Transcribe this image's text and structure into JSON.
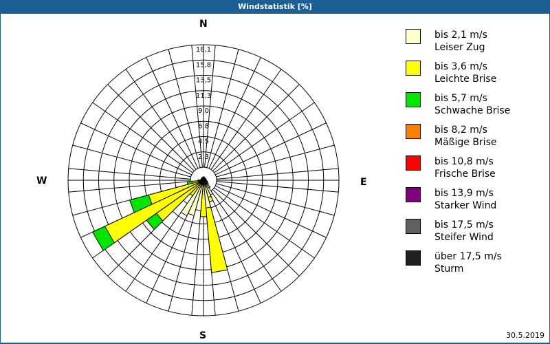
{
  "header": {
    "title": "Windstatistik [%]"
  },
  "compass": {
    "north": "N",
    "east": "E",
    "south": "S",
    "west": "W"
  },
  "footer": {
    "date": "30.5.2019"
  },
  "legend": [
    {
      "line1": "bis 2,1 m/s",
      "line2": "Leiser Zug",
      "color": "#ffffcc"
    },
    {
      "line1": "bis 3,6 m/s",
      "line2": "Leichte Brise",
      "color": "#ffff00"
    },
    {
      "line1": "bis 5,7 m/s",
      "line2": "Schwache Brise",
      "color": "#00e600"
    },
    {
      "line1": "bis 8,2 m/s",
      "line2": "Mäßige Brise",
      "color": "#ff8000"
    },
    {
      "line1": "bis 10,8 m/s",
      "line2": "Frische Brise",
      "color": "#ff0000"
    },
    {
      "line1": "bis 13,9 m/s",
      "line2": "Starker Wind",
      "color": "#800080"
    },
    {
      "line1": "bis 17,5 m/s",
      "line2": "Steifer Wind",
      "color": "#606060"
    },
    {
      "line1": "über 17,5 m/s",
      "line2": "Sturm",
      "color": "#202020"
    }
  ],
  "chart_data": {
    "type": "polar-stacked-bar (wind rose)",
    "title": "Windstatistik [%]",
    "unit": "%",
    "radial_ticks": [
      "2,3",
      "4,5",
      "6,8",
      "9,0",
      "11,3",
      "13,5",
      "15,8",
      "18,1"
    ],
    "radial_max": 18.1,
    "sector_width_deg": 10,
    "compass_labels": [
      "N",
      "E",
      "S",
      "W"
    ],
    "speed_classes": [
      "bis 2,1 m/s",
      "bis 3,6 m/s",
      "bis 5,7 m/s",
      "bis 8,2 m/s",
      "bis 10,8 m/s",
      "bis 13,9 m/s",
      "bis 17,5 m/s",
      "über 17,5 m/s"
    ],
    "sectors": [
      {
        "dir": 0,
        "values": [
          0.3,
          0,
          0,
          0,
          0,
          0,
          0,
          0
        ]
      },
      {
        "dir": 10,
        "values": [
          0.3,
          0,
          0,
          0,
          0,
          0,
          0,
          0
        ]
      },
      {
        "dir": 20,
        "values": [
          0.2,
          0,
          0,
          0,
          0,
          0,
          0,
          0
        ]
      },
      {
        "dir": 30,
        "values": [
          0.2,
          0,
          0,
          0,
          0,
          0,
          0,
          0
        ]
      },
      {
        "dir": 40,
        "values": [
          0.2,
          0,
          0,
          0,
          0,
          0,
          0,
          0
        ]
      },
      {
        "dir": 50,
        "values": [
          0.2,
          0,
          0,
          0,
          0,
          0,
          0,
          0
        ]
      },
      {
        "dir": 60,
        "values": [
          0.2,
          0,
          0,
          0,
          0,
          0,
          0,
          0
        ]
      },
      {
        "dir": 70,
        "values": [
          0.2,
          0,
          0,
          0,
          0,
          0,
          0,
          0
        ]
      },
      {
        "dir": 80,
        "values": [
          0.2,
          0,
          0,
          0,
          0,
          0,
          0,
          0
        ]
      },
      {
        "dir": 90,
        "values": [
          0.2,
          0,
          0,
          0,
          0,
          0,
          0,
          0
        ]
      },
      {
        "dir": 100,
        "values": [
          0.3,
          0,
          0,
          0,
          0,
          0,
          0,
          0
        ]
      },
      {
        "dir": 110,
        "values": [
          0.4,
          0,
          0,
          0,
          0,
          0,
          0,
          0
        ]
      },
      {
        "dir": 120,
        "values": [
          0.5,
          0,
          0,
          0,
          0,
          0,
          0,
          0
        ]
      },
      {
        "dir": 130,
        "values": [
          0.7,
          0,
          0,
          0,
          0,
          0,
          0,
          0
        ]
      },
      {
        "dir": 140,
        "values": [
          1.2,
          0,
          0,
          0,
          0,
          0,
          0,
          0
        ]
      },
      {
        "dir": 150,
        "values": [
          2.2,
          0,
          0,
          0,
          0,
          0,
          0,
          0
        ]
      },
      {
        "dir": 160,
        "values": [
          2.4,
          0.7,
          0,
          0,
          0,
          0,
          0,
          0
        ]
      },
      {
        "dir": 170,
        "values": [
          3.9,
          9.6,
          0,
          0,
          0,
          0,
          0,
          0
        ]
      },
      {
        "dir": 180,
        "values": [
          0.6,
          4.6,
          0,
          0,
          0,
          0,
          0,
          0
        ]
      },
      {
        "dir": 190,
        "values": [
          4.3,
          0,
          0,
          0,
          0,
          0,
          0,
          0
        ]
      },
      {
        "dir": 200,
        "values": [
          5.2,
          0,
          0,
          0,
          0,
          0,
          0,
          0
        ]
      },
      {
        "dir": 210,
        "values": [
          5.6,
          0,
          0,
          0,
          0,
          0,
          0,
          0
        ]
      },
      {
        "dir": 220,
        "values": [
          0.5,
          2.1,
          0,
          0,
          0,
          0,
          0,
          0
        ]
      },
      {
        "dir": 230,
        "values": [
          0.5,
          7.8,
          1.8,
          0,
          0,
          0,
          0,
          0
        ]
      },
      {
        "dir": 240,
        "values": [
          0.6,
          15.3,
          2.0,
          0,
          0,
          0,
          0,
          0
        ]
      },
      {
        "dir": 250,
        "values": [
          0.5,
          7.7,
          2.9,
          0,
          0,
          0,
          0,
          0
        ]
      },
      {
        "dir": 260,
        "values": [
          0.3,
          1.2,
          0.7,
          0,
          0,
          0,
          0,
          0
        ]
      },
      {
        "dir": 270,
        "values": [
          0.3,
          0.3,
          0,
          0,
          0,
          0,
          0,
          0
        ]
      },
      {
        "dir": 280,
        "values": [
          0.2,
          0,
          0,
          0,
          0,
          0,
          0,
          0
        ]
      },
      {
        "dir": 290,
        "values": [
          0.2,
          0,
          0,
          0,
          0,
          0,
          0,
          0
        ]
      },
      {
        "dir": 300,
        "values": [
          0.2,
          0,
          0,
          0,
          0,
          0,
          0,
          0
        ]
      },
      {
        "dir": 310,
        "values": [
          0.2,
          0,
          0,
          0,
          0,
          0,
          0,
          0
        ]
      },
      {
        "dir": 320,
        "values": [
          0.2,
          0,
          0,
          0,
          0,
          0,
          0,
          0
        ]
      },
      {
        "dir": 330,
        "values": [
          0.2,
          0,
          0,
          0,
          0,
          0,
          0,
          0
        ]
      },
      {
        "dir": 340,
        "values": [
          0.2,
          0,
          0,
          0,
          0,
          0,
          0,
          0
        ]
      },
      {
        "dir": 350,
        "values": [
          0.3,
          0,
          0,
          0,
          0,
          0,
          0,
          0
        ]
      }
    ]
  }
}
